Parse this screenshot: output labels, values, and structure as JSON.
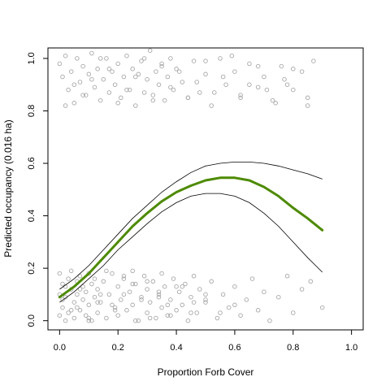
{
  "chart_data": {
    "type": "scatter",
    "title": "",
    "xlabel": "Proportion Forb Cover",
    "ylabel": "Predicted occupancy (0.016 ha)",
    "xlim": [
      -0.04,
      1.04
    ],
    "ylim": [
      -0.035,
      1.04
    ],
    "x_ticks": [
      0.0,
      0.2,
      0.4,
      0.6,
      0.8,
      1.0
    ],
    "y_ticks": [
      0.0,
      0.2,
      0.4,
      0.6,
      0.8,
      1.0
    ],
    "x_tick_labels": [
      "0.0",
      "0.2",
      "0.4",
      "0.6",
      "0.8",
      "1.0"
    ],
    "y_tick_labels": [
      "0.0",
      "0.2",
      "0.4",
      "0.6",
      "0.8",
      "1.0"
    ],
    "grid": false,
    "colors": {
      "fit": "#4d8a00",
      "ci": "#000000",
      "points": "#a8a8a8"
    },
    "fit_curve": {
      "x": [
        0.0,
        0.05,
        0.1,
        0.15,
        0.2,
        0.25,
        0.3,
        0.35,
        0.4,
        0.45,
        0.5,
        0.55,
        0.6,
        0.65,
        0.7,
        0.75,
        0.8,
        0.85,
        0.9
      ],
      "y": [
        0.09,
        0.13,
        0.18,
        0.24,
        0.3,
        0.36,
        0.41,
        0.455,
        0.49,
        0.515,
        0.535,
        0.545,
        0.545,
        0.535,
        0.51,
        0.475,
        0.43,
        0.39,
        0.345
      ]
    },
    "ci_upper": {
      "x": [
        0.0,
        0.05,
        0.1,
        0.15,
        0.2,
        0.25,
        0.3,
        0.35,
        0.4,
        0.45,
        0.5,
        0.55,
        0.6,
        0.65,
        0.7,
        0.75,
        0.8,
        0.85,
        0.9
      ],
      "y": [
        0.12,
        0.16,
        0.21,
        0.27,
        0.33,
        0.39,
        0.44,
        0.49,
        0.53,
        0.565,
        0.59,
        0.6,
        0.605,
        0.605,
        0.6,
        0.59,
        0.575,
        0.56,
        0.54
      ]
    },
    "ci_lower": {
      "x": [
        0.0,
        0.05,
        0.1,
        0.15,
        0.2,
        0.25,
        0.3,
        0.35,
        0.4,
        0.45,
        0.5,
        0.55,
        0.6,
        0.65,
        0.7,
        0.75,
        0.8,
        0.85,
        0.9
      ],
      "y": [
        0.07,
        0.11,
        0.16,
        0.21,
        0.27,
        0.32,
        0.37,
        0.415,
        0.45,
        0.475,
        0.485,
        0.485,
        0.475,
        0.45,
        0.41,
        0.36,
        0.3,
        0.24,
        0.185
      ]
    },
    "points_present": {
      "x": [
        0.0,
        0.01,
        0.02,
        0.03,
        0.04,
        0.05,
        0.06,
        0.07,
        0.08,
        0.09,
        0.1,
        0.11,
        0.12,
        0.13,
        0.14,
        0.15,
        0.16,
        0.17,
        0.18,
        0.19,
        0.2,
        0.21,
        0.22,
        0.23,
        0.24,
        0.25,
        0.26,
        0.27,
        0.28,
        0.29,
        0.3,
        0.31,
        0.32,
        0.33,
        0.34,
        0.35,
        0.36,
        0.37,
        0.38,
        0.39,
        0.4,
        0.42,
        0.44,
        0.46,
        0.48,
        0.5,
        0.52,
        0.55,
        0.57,
        0.6,
        0.62,
        0.65,
        0.68,
        0.7,
        0.73,
        0.76,
        0.78,
        0.8,
        0.83,
        0.85,
        0.87,
        0.02,
        0.05,
        0.08,
        0.11,
        0.14,
        0.17,
        0.2,
        0.23,
        0.26,
        0.29,
        0.32,
        0.35,
        0.38,
        0.41,
        0.44,
        0.47,
        0.5,
        0.53,
        0.56,
        0.59,
        0.62,
        0.65,
        0.68,
        0.71,
        0.74,
        0.77,
        0.8,
        0.85
      ],
      "y": [
        0.98,
        0.93,
        1.01,
        0.88,
        0.95,
        0.83,
        1.0,
        0.91,
        0.97,
        0.86,
        0.94,
        1.02,
        0.89,
        0.96,
        0.84,
        0.92,
        1.0,
        0.87,
        0.95,
        0.9,
        0.98,
        0.85,
        0.93,
        1.01,
        0.88,
        0.96,
        0.82,
        0.94,
        0.99,
        0.87,
        0.92,
        1.03,
        0.86,
        0.95,
        0.9,
        0.98,
        0.84,
        0.93,
        1.0,
        0.88,
        0.96,
        0.91,
        0.85,
        0.99,
        0.87,
        0.94,
        0.82,
        1.0,
        0.9,
        0.95,
        0.86,
        0.98,
        0.89,
        0.93,
        0.84,
        0.97,
        0.9,
        0.88,
        0.95,
        0.85,
        0.99,
        0.82,
        0.9,
        0.86,
        0.92,
        1.0,
        0.96,
        0.83,
        0.88,
        0.93,
        1.0,
        0.84,
        0.97,
        0.89,
        0.95,
        0.85,
        0.91,
        0.99,
        0.87,
        0.93,
        1.01,
        0.85,
        0.9,
        0.97,
        0.88,
        0.83,
        0.92,
        0.96,
        0.82
      ]
    },
    "points_absent": {
      "x": [
        0.0,
        0.0,
        0.0,
        0.01,
        0.01,
        0.02,
        0.02,
        0.03,
        0.03,
        0.04,
        0.04,
        0.05,
        0.05,
        0.06,
        0.06,
        0.07,
        0.07,
        0.08,
        0.08,
        0.09,
        0.09,
        0.1,
        0.1,
        0.11,
        0.11,
        0.12,
        0.12,
        0.13,
        0.13,
        0.14,
        0.15,
        0.16,
        0.17,
        0.18,
        0.19,
        0.2,
        0.2,
        0.21,
        0.22,
        0.23,
        0.24,
        0.25,
        0.25,
        0.26,
        0.27,
        0.28,
        0.29,
        0.3,
        0.3,
        0.31,
        0.32,
        0.33,
        0.34,
        0.35,
        0.35,
        0.36,
        0.37,
        0.38,
        0.39,
        0.4,
        0.41,
        0.42,
        0.43,
        0.44,
        0.45,
        0.46,
        0.47,
        0.48,
        0.5,
        0.52,
        0.54,
        0.56,
        0.58,
        0.6,
        0.62,
        0.64,
        0.66,
        0.68,
        0.7,
        0.72,
        0.75,
        0.78,
        0.8,
        0.83,
        0.86,
        0.9,
        0.02,
        0.06,
        0.1,
        0.14,
        0.18,
        0.22,
        0.26,
        0.3,
        0.34,
        0.38,
        0.42,
        0.46,
        0.5,
        0.55,
        0.6,
        0.01,
        0.04,
        0.07,
        0.1,
        0.13,
        0.16,
        0.19,
        0.22,
        0.25,
        0.28,
        0.31,
        0.34,
        0.37,
        0.4,
        0.45,
        0.5
      ],
      "y": [
        0.02,
        0.1,
        0.18,
        0.05,
        0.14,
        0.0,
        0.09,
        0.16,
        0.03,
        0.12,
        0.19,
        0.07,
        0.01,
        0.15,
        0.1,
        0.04,
        0.17,
        0.08,
        0.13,
        0.02,
        0.11,
        0.18,
        0.06,
        0.14,
        0.0,
        0.09,
        0.16,
        0.03,
        0.12,
        0.07,
        0.15,
        0.01,
        0.1,
        0.18,
        0.05,
        0.13,
        0.02,
        0.08,
        0.16,
        0.04,
        0.11,
        0.19,
        0.06,
        0.14,
        0.0,
        0.09,
        0.17,
        0.03,
        0.12,
        0.07,
        0.15,
        0.01,
        0.1,
        0.18,
        0.05,
        0.13,
        0.02,
        0.08,
        0.16,
        0.04,
        0.11,
        0.06,
        0.14,
        0.0,
        0.09,
        0.17,
        0.03,
        0.12,
        0.07,
        0.15,
        0.01,
        0.1,
        0.05,
        0.13,
        0.02,
        0.08,
        0.16,
        0.04,
        0.11,
        0.0,
        0.09,
        0.17,
        0.03,
        0.12,
        0.15,
        0.05,
        0.13,
        0.05,
        0.0,
        0.1,
        0.06,
        0.17,
        0.0,
        0.15,
        0.09,
        0.02,
        0.13,
        0.07,
        0.1,
        0.03,
        0.06,
        0.08,
        0.04,
        0.12,
        0.01,
        0.07,
        0.19,
        0.04,
        0.1,
        0.14,
        0.08,
        0.01,
        0.11,
        0.06,
        0.13,
        0.03,
        0.08
      ]
    }
  }
}
